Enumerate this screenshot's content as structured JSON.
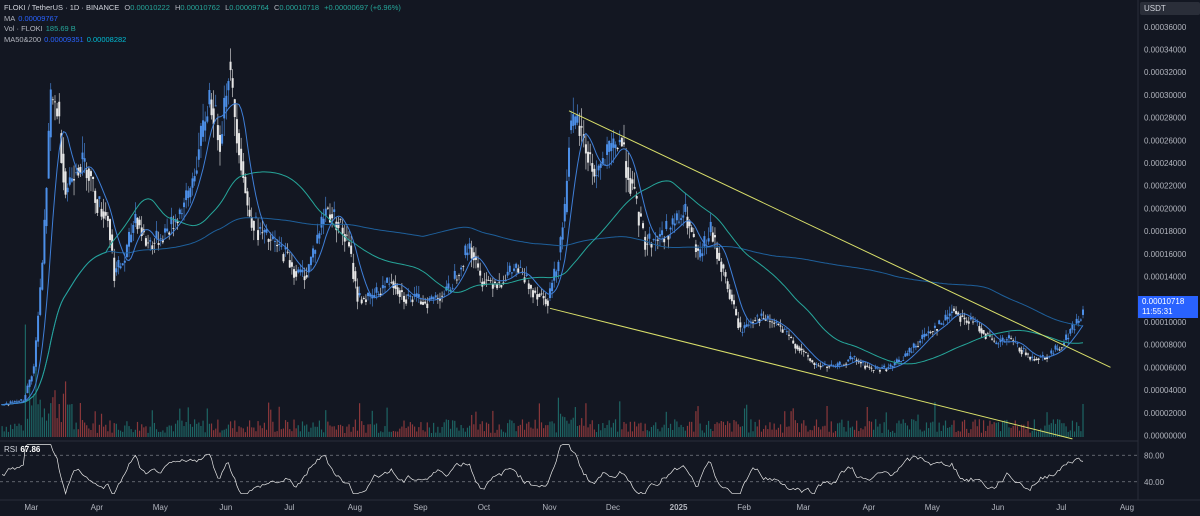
{
  "header": {
    "symbol": "FLOKI / TetherUS · 1D · BINANCE",
    "o_label": "O",
    "o_value": "0.00010222",
    "h_label": "H",
    "h_value": "0.00010762",
    "l_label": "L",
    "l_value": "0.00009764",
    "c_label": "C",
    "c_value": "0.00010718",
    "change": "+0.00000697 (+6.96%)",
    "ma_label": "MA",
    "ma_value": "0.00009767",
    "vol_label": "Vol · FLOKI",
    "vol_value": "185.69 B",
    "ma2_label": "MA50&200",
    "ma2_value1": "0.00009351",
    "ma2_value2": "0.00008282"
  },
  "currency": "USDT",
  "last_price": {
    "value": "0.00010718",
    "countdown": "11:55:31"
  },
  "rsi": {
    "label": "RSI",
    "value": "67.86",
    "levels": [
      "80.00",
      "40.00"
    ]
  },
  "colors": {
    "bg": "#131722",
    "bull": "#4c8fe8",
    "bear": "#e6e6e6",
    "ma_fast": "#3f7fd8",
    "ma_mid": "#26a69a",
    "ma_slow": "#1e5f9a",
    "trend": "#d9df6a",
    "vol_up": "#26a69a",
    "vol_down": "#ef5350"
  },
  "chart_data": {
    "type": "candlestick",
    "x_ticks": [
      "Mar",
      "Apr",
      "May",
      "Jun",
      "Jul",
      "Aug",
      "Sep",
      "Oct",
      "Nov",
      "Dec",
      "2025",
      "Feb",
      "Mar",
      "Apr",
      "May",
      "Jun",
      "Jul",
      "Aug"
    ],
    "y_ticks": [
      "0.00036000",
      "0.00034000",
      "0.00032000",
      "0.00030000",
      "0.00028000",
      "0.00026000",
      "0.00024000",
      "0.00022000",
      "0.00020000",
      "0.00018000",
      "0.00016000",
      "0.00014000",
      "0.00012000",
      "0.00010000",
      "0.00008000",
      "0.00006000",
      "0.00004000",
      "0.00002000",
      "0.00000000"
    ],
    "ylim": [
      -4e-06,
      0.000366
    ],
    "price_path": [
      [
        "2024-02-20",
        2.7e-05
      ],
      [
        "2024-03-01",
        3.1e-05
      ],
      [
        "2024-03-06",
        6e-05
      ],
      [
        "2024-03-10",
        0.00015
      ],
      [
        "2024-03-14",
        0.000295
      ],
      [
        "2024-03-17",
        0.00029
      ],
      [
        "2024-03-21",
        0.000215
      ],
      [
        "2024-03-26",
        0.00024
      ],
      [
        "2024-03-31",
        0.000238
      ],
      [
        "2024-04-05",
        0.000205
      ],
      [
        "2024-04-10",
        0.000192
      ],
      [
        "2024-04-13",
        0.000143
      ],
      [
        "2024-04-18",
        0.000155
      ],
      [
        "2024-04-23",
        0.000195
      ],
      [
        "2024-04-28",
        0.00017
      ],
      [
        "2024-05-02",
        0.00017
      ],
      [
        "2024-05-10",
        0.000185
      ],
      [
        "2024-05-18",
        0.00021
      ],
      [
        "2024-05-23",
        0.00025
      ],
      [
        "2024-05-28",
        0.0003
      ],
      [
        "2024-06-02",
        0.000262
      ],
      [
        "2024-06-06",
        0.000325
      ],
      [
        "2024-06-10",
        0.00027
      ],
      [
        "2024-06-15",
        0.0002
      ],
      [
        "2024-06-20",
        0.00018
      ],
      [
        "2024-06-25",
        0.000172
      ],
      [
        "2024-07-03",
        0.00016
      ],
      [
        "2024-07-08",
        0.000142
      ],
      [
        "2024-07-13",
        0.000143
      ],
      [
        "2024-07-22",
        0.0002
      ],
      [
        "2024-07-28",
        0.000188
      ],
      [
        "2024-08-02",
        0.000165
      ],
      [
        "2024-08-06",
        0.000122
      ],
      [
        "2024-08-12",
        0.00012
      ],
      [
        "2024-08-22",
        0.000138
      ],
      [
        "2024-08-28",
        0.000122
      ],
      [
        "2024-09-08",
        0.000118
      ],
      [
        "2024-09-18",
        0.000128
      ],
      [
        "2024-09-28",
        0.000168
      ],
      [
        "2024-10-03",
        0.000138
      ],
      [
        "2024-10-12",
        0.000135
      ],
      [
        "2024-10-20",
        0.000148
      ],
      [
        "2024-10-28",
        0.000128
      ],
      [
        "2024-11-04",
        0.00012
      ],
      [
        "2024-11-08",
        0.000148
      ],
      [
        "2024-11-12",
        0.0002
      ],
      [
        "2024-11-14",
        0.000265
      ],
      [
        "2024-11-18",
        0.000275
      ],
      [
        "2024-11-26",
        0.00023
      ],
      [
        "2024-12-04",
        0.00025
      ],
      [
        "2024-12-08",
        0.000262
      ],
      [
        "2024-12-14",
        0.000215
      ],
      [
        "2024-12-20",
        0.00017
      ],
      [
        "2024-12-27",
        0.000175
      ],
      [
        "2025-01-02",
        0.000185
      ],
      [
        "2025-01-08",
        0.000195
      ],
      [
        "2025-01-14",
        0.000155
      ],
      [
        "2025-01-20",
        0.00018
      ],
      [
        "2025-01-28",
        0.00013
      ],
      [
        "2025-02-03",
        9.2e-05
      ],
      [
        "2025-02-10",
        0.000105
      ],
      [
        "2025-02-20",
        9.8e-05
      ],
      [
        "2025-03-01",
        8e-05
      ],
      [
        "2025-03-10",
        6.2e-05
      ],
      [
        "2025-03-20",
        6e-05
      ],
      [
        "2025-03-28",
        6.8e-05
      ],
      [
        "2025-04-06",
        5.8e-05
      ],
      [
        "2025-04-15",
        6e-05
      ],
      [
        "2025-04-22",
        7e-05
      ],
      [
        "2025-05-03",
        9.2e-05
      ],
      [
        "2025-05-10",
        0.0001
      ],
      [
        "2025-05-14",
        0.000112
      ],
      [
        "2025-05-20",
        0.000102
      ],
      [
        "2025-05-26",
        9.8e-05
      ],
      [
        "2025-06-03",
        8e-05
      ],
      [
        "2025-06-10",
        8.5e-05
      ],
      [
        "2025-06-16",
        7.5e-05
      ],
      [
        "2025-06-20",
        6.8e-05
      ],
      [
        "2025-06-28",
        7e-05
      ],
      [
        "2025-07-05",
        8e-05
      ],
      [
        "2025-07-10",
        9.5e-05
      ],
      [
        "2025-07-15",
        0.000107
      ]
    ],
    "trendline_upper": [
      [
        "2024-11-14",
        0.000286
      ],
      [
        "2025-07-28",
        6e-05
      ]
    ],
    "trendline_lower": [
      [
        "2024-11-05",
        0.000112
      ],
      [
        "2025-07-10",
        -3e-06
      ]
    ],
    "rsi_levels": [
      80,
      40
    ]
  }
}
